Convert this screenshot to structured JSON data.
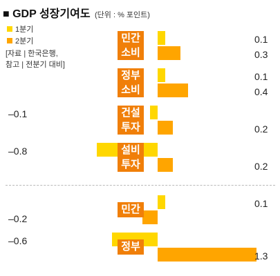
{
  "header": {
    "title": "GDP 성장기여도",
    "unit": "(단위 : % 포인트)"
  },
  "legend": {
    "q1_label": "1분기",
    "q2_label": "2분기"
  },
  "source": {
    "line1": "[자료 | 한국은행,",
    "line2": "참고 | 전분기 대비]"
  },
  "colors": {
    "q1": "#ffd700",
    "q2": "#ffa500",
    "category": "#f07f09"
  },
  "chart_data": {
    "type": "bar",
    "orientation": "horizontal",
    "series": [
      {
        "name": "1분기",
        "values": [
          0.1,
          0.1,
          -0.1,
          -0.8,
          0.1,
          -0.6
        ]
      },
      {
        "name": "2분기",
        "values": [
          0.3,
          0.4,
          0.2,
          0.2,
          -0.2,
          1.3
        ]
      }
    ],
    "categories": [
      "민간소비",
      "정부소비",
      "건설투자",
      "설비투자",
      "민간",
      "정부"
    ],
    "category_labels": [
      [
        "민간",
        "소비"
      ],
      [
        "정부",
        "소비"
      ],
      [
        "건설",
        "투자"
      ],
      [
        "설비",
        "투자"
      ],
      [
        "민간"
      ],
      [
        "정부"
      ]
    ],
    "value_labels": [
      [
        "0.1",
        "0.3"
      ],
      [
        "0.1",
        "0.4"
      ],
      [
        "–0.1",
        "0.2"
      ],
      [
        "–0.8",
        "0.2"
      ],
      [
        "0.1",
        "–0.2"
      ],
      [
        "–0.6",
        "1.3"
      ]
    ]
  }
}
